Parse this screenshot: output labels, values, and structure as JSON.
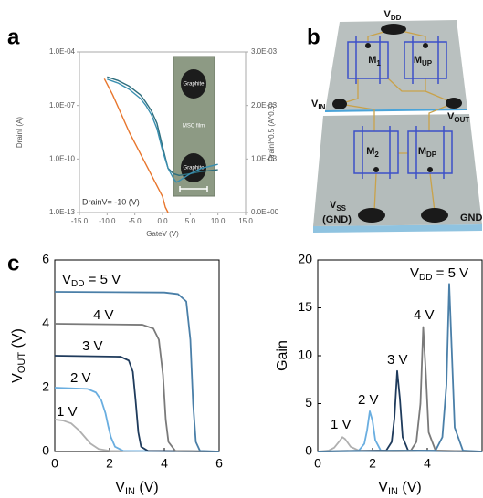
{
  "panels": [
    "a",
    "b",
    "c"
  ],
  "diagram": {
    "labels": [
      [
        "V",
        "DD"
      ],
      [
        "M",
        "1"
      ],
      [
        "M",
        "UP"
      ],
      [
        "V",
        "IN"
      ],
      [
        "V",
        "OUT"
      ],
      [
        "M",
        "2"
      ],
      [
        "M",
        "DP"
      ],
      [
        "V",
        "SS"
      ],
      [
        "(GND)"
      ],
      [
        "GND"
      ]
    ]
  },
  "chart_data": [
    {
      "type": "line",
      "xlabel": "GateV (V)",
      "ylabel": "DrainI (A)",
      "y2label": "DrainI^0.5 (A^0.5)",
      "annotation": "DrainV= -10 (V)",
      "inset_labels": [
        "Graphite",
        "MSC film",
        "Graphite"
      ],
      "xlim": [
        -15,
        15
      ],
      "ylim": [
        1e-13,
        0.0001
      ],
      "ylog": true,
      "y2lim": [
        0,
        0.003
      ],
      "xticks": [
        {
          "value": -15,
          "label": "-15.0"
        },
        {
          "value": -10,
          "label": "-10.0"
        },
        {
          "value": -5,
          "label": "-5.0"
        },
        {
          "value": 0,
          "label": "0.0"
        },
        {
          "value": 5,
          "label": "5.0"
        },
        {
          "value": 10,
          "label": "10.0"
        },
        {
          "value": 15,
          "label": "15.0"
        }
      ],
      "yticks": [
        {
          "value": 1e-13,
          "label": "1.0E-13"
        },
        {
          "value": 1e-10,
          "label": "1.0E-10"
        },
        {
          "value": 1e-07,
          "label": "1.0E-07"
        },
        {
          "value": 0.0001,
          "label": "1.0E-04"
        }
      ],
      "y2ticks": [
        {
          "value": 0,
          "label": "0.0E+00"
        },
        {
          "value": 0.001,
          "label": "1.0E-03"
        },
        {
          "value": 0.002,
          "label": "2.0E-03"
        },
        {
          "value": 0.003,
          "label": "3.0E-03"
        }
      ],
      "series": [
        {
          "color": "#2e6e7e",
          "x": [
            -10,
            -8,
            -6,
            -4,
            -3,
            -2,
            -1,
            0,
            1,
            2,
            3,
            5,
            7,
            10
          ],
          "values": [
            4e-06,
            2.5e-06,
            1.2e-06,
            4e-07,
            1.5e-07,
            5e-08,
            1e-08,
            5e-10,
            3e-11,
            1.5e-11,
            1.2e-11,
            1.5e-11,
            2e-11,
            2.5e-11
          ]
        },
        {
          "color": "#3a8fb0",
          "x": [
            -10,
            -8,
            -6,
            -4,
            -3,
            -2,
            -1,
            0,
            1,
            2,
            2.5,
            3,
            5,
            7,
            10
          ],
          "values": [
            3e-06,
            1.8e-06,
            8e-07,
            2.5e-07,
            1e-07,
            3e-08,
            5e-09,
            3e-10,
            3e-11,
            8e-12,
            5e-12,
            6e-12,
            1.5e-11,
            3e-11,
            5e-11
          ]
        },
        {
          "color": "#e8762d",
          "axis": "y2",
          "x": [
            -10.5,
            -9,
            -7.5,
            -6,
            -4.5,
            -3,
            -1.5,
            0,
            0.5,
            1
          ],
          "values": [
            0.0025,
            0.0022,
            0.00185,
            0.0015,
            0.0012,
            0.0009,
            0.0006,
            0.0003,
            0.0001,
            0
          ]
        }
      ]
    },
    {
      "type": "line",
      "xlabel": [
        "V",
        "IN",
        " (V)"
      ],
      "ylabel": [
        "V",
        "OUT",
        " (V)"
      ],
      "vdd_label": [
        "V",
        "DD",
        " = "
      ],
      "xlim": [
        0,
        6
      ],
      "ylim": [
        0,
        6
      ],
      "xticks": [
        0,
        2,
        4,
        6
      ],
      "yticks": [
        0,
        2,
        4,
        6
      ],
      "series": [
        {
          "name": "1 V",
          "color": "#b0b0b0",
          "x": [
            0,
            0.3,
            0.6,
            0.9,
            1.1,
            1.3,
            1.6,
            2,
            6
          ],
          "values": [
            1,
            0.97,
            0.88,
            0.65,
            0.45,
            0.25,
            0.08,
            0.02,
            0
          ]
        },
        {
          "name": "2 V",
          "color": "#6aaee0",
          "x": [
            0,
            1.2,
            1.5,
            1.7,
            1.85,
            1.95,
            2.05,
            2.2,
            2.5,
            6
          ],
          "values": [
            2,
            1.96,
            1.85,
            1.6,
            1.2,
            0.8,
            0.45,
            0.15,
            0.02,
            0
          ]
        },
        {
          "name": "3 V",
          "color": "#1f3b5c",
          "x": [
            0,
            2.4,
            2.7,
            2.85,
            2.95,
            3.05,
            3.15,
            3.4,
            6
          ],
          "values": [
            3,
            2.97,
            2.85,
            2.5,
            1.6,
            0.6,
            0.15,
            0.02,
            0
          ]
        },
        {
          "name": "4 V",
          "color": "#7a7a7a",
          "x": [
            0,
            3.2,
            3.6,
            3.8,
            3.95,
            4.05,
            4.15,
            4.4,
            6
          ],
          "values": [
            4,
            3.97,
            3.85,
            3.5,
            2.4,
            1,
            0.3,
            0.02,
            0
          ]
        },
        {
          "name": "5 V",
          "color": "#4a7fa8",
          "x": [
            0,
            4,
            4.5,
            4.8,
            4.95,
            5.05,
            5.15,
            5.3,
            6
          ],
          "values": [
            5,
            4.98,
            4.93,
            4.7,
            3.5,
            1.5,
            0.3,
            0.02,
            0
          ]
        }
      ]
    },
    {
      "type": "line",
      "xlabel": [
        "V",
        "IN",
        " (V)"
      ],
      "ylabel": "Gain",
      "vdd_label": [
        "V",
        "DD",
        " = "
      ],
      "xlim": [
        0,
        6
      ],
      "ylim": [
        0,
        20
      ],
      "xticks": [
        0,
        2,
        4
      ],
      "yticks": [
        0,
        5,
        10,
        15,
        20
      ],
      "series": [
        {
          "name": "1 V",
          "color": "#b0b0b0",
          "x": [
            0,
            0.4,
            0.6,
            0.8,
            0.9,
            1.0,
            1.2,
            1.5,
            6
          ],
          "values": [
            0,
            0.1,
            0.4,
            1.1,
            1.5,
            1.3,
            0.5,
            0.1,
            0
          ]
        },
        {
          "name": "2 V",
          "color": "#6aaee0",
          "x": [
            0,
            1.5,
            1.7,
            1.8,
            1.9,
            2.0,
            2.1,
            2.3,
            6
          ],
          "values": [
            0,
            0.1,
            0.8,
            2.2,
            4.2,
            3.2,
            1.2,
            0.1,
            0
          ]
        },
        {
          "name": "3 V",
          "color": "#1f3b5c",
          "x": [
            0,
            2.5,
            2.7,
            2.8,
            2.9,
            3.0,
            3.1,
            3.3,
            6
          ],
          "values": [
            0,
            0.1,
            1.0,
            3.5,
            8.4,
            5.5,
            1.5,
            0.1,
            0
          ]
        },
        {
          "name": "4 V",
          "color": "#7a7a7a",
          "x": [
            0,
            3.4,
            3.6,
            3.75,
            3.85,
            3.95,
            4.05,
            4.3,
            6
          ],
          "values": [
            0,
            0.1,
            1,
            5,
            13,
            8,
            2,
            0.1,
            0
          ]
        },
        {
          "name": "5 V",
          "color": "#4a7fa8",
          "x": [
            0,
            4.3,
            4.55,
            4.7,
            4.8,
            4.9,
            5.0,
            5.3,
            6
          ],
          "values": [
            0,
            0.1,
            1.5,
            7,
            17.5,
            10,
            2.5,
            0.1,
            0
          ]
        }
      ]
    }
  ]
}
